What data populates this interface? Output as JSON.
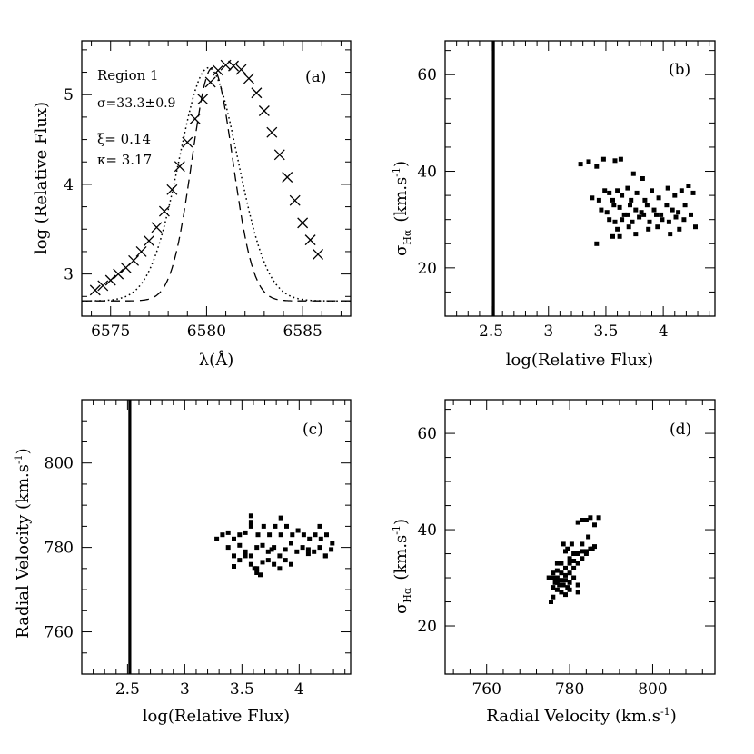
{
  "chart_data": [
    {
      "id": "a",
      "type": "line",
      "panel_label": "(a)",
      "xlabel": "λ(Å)",
      "ylabel": "log (Relative Flux)",
      "xlim": [
        6573.5,
        6587.5
      ],
      "ylim": [
        2.53,
        5.6
      ],
      "xticks": [
        6575,
        6580,
        6585
      ],
      "yticks": [
        3,
        4,
        5
      ],
      "annotations": {
        "region": "Region 1",
        "sigma": "σ=33.3±0.9",
        "xi": "ξ=  0.14",
        "kappa": "κ=  3.17"
      },
      "observed_points": {
        "x": [
          6574.2,
          6574.6,
          6575.0,
          6575.4,
          6575.8,
          6576.2,
          6576.6,
          6577.0,
          6577.4,
          6577.8,
          6578.2,
          6578.6,
          6579.0,
          6579.4,
          6579.8,
          6580.2,
          6580.6,
          6581.0,
          6581.4,
          6581.8,
          6582.2,
          6582.6,
          6583.0,
          6583.4,
          6583.8,
          6584.2,
          6584.6,
          6585.0,
          6585.4,
          6585.8
        ],
        "y": [
          2.82,
          2.87,
          2.93,
          3.0,
          3.07,
          3.15,
          3.25,
          3.37,
          3.52,
          3.7,
          3.94,
          4.2,
          4.47,
          4.73,
          4.95,
          5.14,
          5.27,
          5.33,
          5.32,
          5.28,
          5.18,
          5.02,
          4.82,
          4.58,
          4.33,
          4.08,
          3.82,
          3.57,
          3.38,
          3.22
        ]
      },
      "series": [
        {
          "name": "model-dotted",
          "center": 6580.1,
          "sigma": 1.53,
          "base": 2.7,
          "peak": 5.3
        },
        {
          "name": "model-dashed",
          "center": 6580.3,
          "sigma": 1.06,
          "base": 2.7,
          "peak": 5.3
        }
      ]
    },
    {
      "id": "b",
      "type": "scatter",
      "panel_label": "(b)",
      "xlabel": "log(Relative Flux)",
      "ylabel": "σHα  (km.s⁻¹)",
      "ylabel_parts": {
        "sym": "σ",
        "sub": "Hα",
        "unit": "(km.s",
        "sup": "-1",
        "close": ")"
      },
      "xlim": [
        2.1,
        4.45
      ],
      "ylim": [
        10,
        67
      ],
      "xticks": [
        2.5,
        3,
        3.5,
        4
      ],
      "xtick_labels": [
        "2.5",
        "3",
        "3.5",
        "4"
      ],
      "yticks": [
        20,
        40,
        60
      ],
      "vline_x": 2.52,
      "points": [
        [
          3.28,
          41.5
        ],
        [
          3.35,
          42
        ],
        [
          3.42,
          41
        ],
        [
          3.48,
          42.5
        ],
        [
          3.58,
          42.2
        ],
        [
          3.63,
          42.5
        ],
        [
          3.74,
          39.5
        ],
        [
          3.82,
          38.5
        ],
        [
          3.38,
          34.5
        ],
        [
          3.44,
          34
        ],
        [
          3.49,
          36
        ],
        [
          3.53,
          35.5
        ],
        [
          3.56,
          34
        ],
        [
          3.6,
          36
        ],
        [
          3.64,
          35
        ],
        [
          3.69,
          36.5
        ],
        [
          3.72,
          34
        ],
        [
          3.77,
          35.5
        ],
        [
          3.84,
          34
        ],
        [
          3.9,
          36
        ],
        [
          3.96,
          34.5
        ],
        [
          4.04,
          36.5
        ],
        [
          4.1,
          35
        ],
        [
          4.16,
          36
        ],
        [
          4.22,
          37
        ],
        [
          4.26,
          35.5
        ],
        [
          3.46,
          32
        ],
        [
          3.51,
          31.5
        ],
        [
          3.57,
          33
        ],
        [
          3.62,
          32.5
        ],
        [
          3.66,
          31
        ],
        [
          3.71,
          33
        ],
        [
          3.76,
          32
        ],
        [
          3.81,
          31.5
        ],
        [
          3.86,
          33
        ],
        [
          3.92,
          32
        ],
        [
          3.98,
          31
        ],
        [
          4.03,
          33
        ],
        [
          4.08,
          32
        ],
        [
          4.13,
          31.5
        ],
        [
          4.19,
          33
        ],
        [
          3.53,
          30
        ],
        [
          3.58,
          29.5
        ],
        [
          3.64,
          30
        ],
        [
          3.69,
          31
        ],
        [
          3.73,
          29.5
        ],
        [
          3.79,
          30.5
        ],
        [
          3.83,
          31
        ],
        [
          3.88,
          29.5
        ],
        [
          3.94,
          31
        ],
        [
          3.99,
          30
        ],
        [
          4.05,
          29.5
        ],
        [
          4.11,
          30.5
        ],
        [
          4.18,
          30
        ],
        [
          4.24,
          31
        ],
        [
          3.6,
          28
        ],
        [
          3.7,
          28.5
        ],
        [
          3.76,
          27
        ],
        [
          3.87,
          28
        ],
        [
          3.95,
          28.5
        ],
        [
          4.06,
          27
        ],
        [
          4.14,
          28
        ],
        [
          4.28,
          28.5
        ],
        [
          3.56,
          26.5
        ],
        [
          3.62,
          26.5
        ],
        [
          3.42,
          25
        ]
      ]
    },
    {
      "id": "c",
      "type": "scatter",
      "panel_label": "(c)",
      "xlabel": "log(Relative Flux)",
      "ylabel": "Radial Velocity (km.s⁻¹)",
      "ylabel_parts": {
        "text": "Radial Velocity (km.s",
        "sup": "-1",
        "close": ")"
      },
      "xlim": [
        2.1,
        4.45
      ],
      "ylim": [
        750,
        815
      ],
      "xticks": [
        2.5,
        3,
        3.5,
        4
      ],
      "xtick_labels": [
        "2.5",
        "3",
        "3.5",
        "4"
      ],
      "yticks": [
        760,
        780,
        800
      ],
      "vline_x": 2.52,
      "points": [
        [
          3.28,
          782
        ],
        [
          3.33,
          783
        ],
        [
          3.38,
          783.5
        ],
        [
          3.43,
          782
        ],
        [
          3.48,
          783
        ],
        [
          3.53,
          783.5
        ],
        [
          3.58,
          785
        ],
        [
          3.58,
          787.5
        ],
        [
          3.64,
          783
        ],
        [
          3.69,
          785
        ],
        [
          3.74,
          783
        ],
        [
          3.79,
          785
        ],
        [
          3.84,
          787
        ],
        [
          3.84,
          783
        ],
        [
          3.89,
          785
        ],
        [
          3.94,
          783
        ],
        [
          3.99,
          784
        ],
        [
          4.04,
          783
        ],
        [
          4.09,
          782
        ],
        [
          4.14,
          783
        ],
        [
          4.19,
          782
        ],
        [
          4.24,
          783
        ],
        [
          4.29,
          781
        ],
        [
          3.38,
          780
        ],
        [
          3.43,
          778
        ],
        [
          3.48,
          780.5
        ],
        [
          3.53,
          779
        ],
        [
          3.58,
          778
        ],
        [
          3.63,
          780
        ],
        [
          3.68,
          780.5
        ],
        [
          3.73,
          779
        ],
        [
          3.78,
          780
        ],
        [
          3.83,
          778
        ],
        [
          3.88,
          779.5
        ],
        [
          3.93,
          781
        ],
        [
          3.98,
          779
        ],
        [
          4.03,
          780
        ],
        [
          4.08,
          778.5
        ],
        [
          4.13,
          779
        ],
        [
          4.18,
          780
        ],
        [
          4.23,
          778
        ],
        [
          4.28,
          779.5
        ],
        [
          3.43,
          775.5
        ],
        [
          3.48,
          777
        ],
        [
          3.53,
          778
        ],
        [
          3.58,
          776
        ],
        [
          3.63,
          775
        ],
        [
          3.68,
          776.5
        ],
        [
          3.73,
          777
        ],
        [
          3.78,
          776
        ],
        [
          3.83,
          775
        ],
        [
          3.88,
          777
        ],
        [
          3.93,
          776
        ],
        [
          3.58,
          786
        ],
        [
          3.61,
          775
        ],
        [
          3.63,
          774
        ],
        [
          3.66,
          773.5
        ],
        [
          3.76,
          779.5
        ],
        [
          4.08,
          779.5
        ],
        [
          4.18,
          785
        ],
        [
          4.23,
          778
        ]
      ]
    },
    {
      "id": "d",
      "type": "scatter",
      "panel_label": "(d)",
      "xlabel": "Radial Velocity (km.s⁻¹)",
      "ylabel": "σHα  (km.s⁻¹)",
      "ylabel_parts": {
        "sym": "σ",
        "sub": "Hα",
        "unit": "(km.s",
        "sup": "-1",
        "close": ")"
      },
      "xlabel_parts": {
        "text": "Radial Velocity (km.s",
        "sup": "-1",
        "close": ")"
      },
      "xlim": [
        750,
        815
      ],
      "ylim": [
        10,
        67
      ],
      "xticks": [
        760,
        780,
        800
      ],
      "xtick_labels": [
        "760",
        "780",
        "800"
      ],
      "yticks": [
        20,
        40,
        60
      ],
      "points": [
        [
          783,
          42
        ],
        [
          784,
          42
        ],
        [
          785,
          42.5
        ],
        [
          787,
          42.5
        ],
        [
          786,
          41
        ],
        [
          782,
          41.5
        ],
        [
          784.5,
          38.5
        ],
        [
          783,
          37
        ],
        [
          785,
          36
        ],
        [
          786,
          36.5
        ],
        [
          782,
          35
        ],
        [
          784,
          35
        ],
        [
          781,
          35
        ],
        [
          783,
          34
        ],
        [
          780,
          34
        ],
        [
          779.5,
          36
        ],
        [
          778.5,
          37
        ],
        [
          779,
          35.5
        ],
        [
          777,
          33
        ],
        [
          778,
          33
        ],
        [
          780,
          33
        ],
        [
          782,
          33
        ],
        [
          779,
          32
        ],
        [
          781,
          32
        ],
        [
          776,
          31
        ],
        [
          777,
          31.5
        ],
        [
          778,
          31
        ],
        [
          779,
          30.5
        ],
        [
          780,
          31
        ],
        [
          775,
          30
        ],
        [
          776,
          30
        ],
        [
          777,
          30
        ],
        [
          778,
          29.5
        ],
        [
          779,
          29.5
        ],
        [
          780,
          29
        ],
        [
          781,
          30
        ],
        [
          776.5,
          29
        ],
        [
          777.5,
          28.5
        ],
        [
          778.5,
          28.5
        ],
        [
          779.5,
          28
        ],
        [
          776,
          28
        ],
        [
          777,
          27.5
        ],
        [
          778,
          27
        ],
        [
          779,
          26.5
        ],
        [
          780,
          27.5
        ],
        [
          776,
          26
        ],
        [
          775.5,
          25
        ],
        [
          782,
          28.5
        ],
        [
          782,
          27
        ],
        [
          785.5,
          36
        ],
        [
          784,
          35.5
        ],
        [
          783,
          35.5
        ],
        [
          780.5,
          37
        ],
        [
          781,
          33.5
        ],
        [
          777,
          29
        ]
      ]
    }
  ]
}
